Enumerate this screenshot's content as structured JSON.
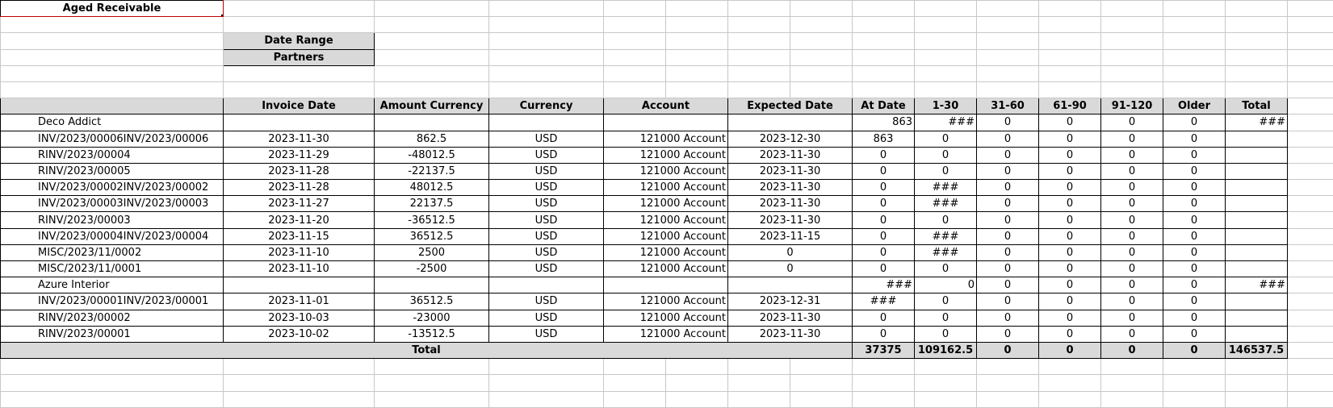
{
  "report": {
    "title": "Aged Receivable",
    "filters": {
      "date_range_label": "Date Range",
      "partners_label": "Partners"
    }
  },
  "columns": [
    "",
    "Invoice Date",
    "Amount Currency",
    "Currency",
    "Account",
    "Expected Date",
    "At Date",
    "1-30",
    "31-60",
    "61-90",
    "91-120",
    "Older",
    "Total"
  ],
  "groups": [
    {
      "partner": "Deco Addict",
      "subtotals": {
        "at_date": "863",
        "d1_30": "###",
        "d31_60": "0",
        "d61_90": "0",
        "d91_120": "0",
        "older": "0",
        "total": "###"
      },
      "rows": [
        {
          "ref": "INV/2023/00006INV/2023/00006",
          "invoice_date": "2023-11-30",
          "amount": "862.5",
          "currency": "USD",
          "account": "121000 Account",
          "expected": "2023-12-30",
          "at_date": "863",
          "d1_30": "0",
          "d31_60": "0",
          "d61_90": "0",
          "d91_120": "0",
          "older": "0"
        },
        {
          "ref": "RINV/2023/00004",
          "invoice_date": "2023-11-29",
          "amount": "-48012.5",
          "currency": "USD",
          "account": "121000 Account",
          "expected": "2023-11-30",
          "at_date": "0",
          "d1_30": "0",
          "d31_60": "0",
          "d61_90": "0",
          "d91_120": "0",
          "older": "0"
        },
        {
          "ref": "RINV/2023/00005",
          "invoice_date": "2023-11-28",
          "amount": "-22137.5",
          "currency": "USD",
          "account": "121000 Account",
          "expected": "2023-11-30",
          "at_date": "0",
          "d1_30": "0",
          "d31_60": "0",
          "d61_90": "0",
          "d91_120": "0",
          "older": "0"
        },
        {
          "ref": "INV/2023/00002INV/2023/00002",
          "invoice_date": "2023-11-28",
          "amount": "48012.5",
          "currency": "USD",
          "account": "121000 Account",
          "expected": "2023-11-30",
          "at_date": "0",
          "d1_30": "###",
          "d31_60": "0",
          "d61_90": "0",
          "d91_120": "0",
          "older": "0"
        },
        {
          "ref": "INV/2023/00003INV/2023/00003",
          "invoice_date": "2023-11-27",
          "amount": "22137.5",
          "currency": "USD",
          "account": "121000 Account",
          "expected": "2023-11-30",
          "at_date": "0",
          "d1_30": "###",
          "d31_60": "0",
          "d61_90": "0",
          "d91_120": "0",
          "older": "0"
        },
        {
          "ref": "RINV/2023/00003",
          "invoice_date": "2023-11-20",
          "amount": "-36512.5",
          "currency": "USD",
          "account": "121000 Account",
          "expected": "2023-11-30",
          "at_date": "0",
          "d1_30": "0",
          "d31_60": "0",
          "d61_90": "0",
          "d91_120": "0",
          "older": "0"
        },
        {
          "ref": "INV/2023/00004INV/2023/00004",
          "invoice_date": "2023-11-15",
          "amount": "36512.5",
          "currency": "USD",
          "account": "121000 Account",
          "expected": "2023-11-15",
          "at_date": "0",
          "d1_30": "###",
          "d31_60": "0",
          "d61_90": "0",
          "d91_120": "0",
          "older": "0"
        },
        {
          "ref": "MISC/2023/11/0002",
          "invoice_date": "2023-11-10",
          "amount": "2500",
          "currency": "USD",
          "account": "121000 Account",
          "expected": "0",
          "at_date": "0",
          "d1_30": "###",
          "d31_60": "0",
          "d61_90": "0",
          "d91_120": "0",
          "older": "0"
        },
        {
          "ref": "MISC/2023/11/0001",
          "invoice_date": "2023-11-10",
          "amount": "-2500",
          "currency": "USD",
          "account": "121000 Account",
          "expected": "0",
          "at_date": "0",
          "d1_30": "0",
          "d31_60": "0",
          "d61_90": "0",
          "d91_120": "0",
          "older": "0"
        }
      ]
    },
    {
      "partner": "Azure Interior",
      "subtotals": {
        "at_date": "###",
        "d1_30": "0",
        "d31_60": "0",
        "d61_90": "0",
        "d91_120": "0",
        "older": "0",
        "total": "###"
      },
      "rows": [
        {
          "ref": "INV/2023/00001INV/2023/00001",
          "invoice_date": "2023-11-01",
          "amount": "36512.5",
          "currency": "USD",
          "account": "121000 Account",
          "expected": "2023-12-31",
          "at_date": "###",
          "d1_30": "0",
          "d31_60": "0",
          "d61_90": "0",
          "d91_120": "0",
          "older": "0"
        },
        {
          "ref": "RINV/2023/00002",
          "invoice_date": "2023-10-03",
          "amount": "-23000",
          "currency": "USD",
          "account": "121000 Account",
          "expected": "2023-11-30",
          "at_date": "0",
          "d1_30": "0",
          "d31_60": "0",
          "d61_90": "0",
          "d91_120": "0",
          "older": "0"
        },
        {
          "ref": "RINV/2023/00001",
          "invoice_date": "2023-10-02",
          "amount": "-13512.5",
          "currency": "USD",
          "account": "121000 Account",
          "expected": "2023-11-30",
          "at_date": "0",
          "d1_30": "0",
          "d31_60": "0",
          "d61_90": "0",
          "d91_120": "0",
          "older": "0"
        }
      ]
    }
  ],
  "totals": {
    "label": "Total",
    "at_date": "37375",
    "d1_30": "109162.5",
    "d31_60": "0",
    "d61_90": "0",
    "d91_120": "0",
    "older": "0",
    "total": "146537.5"
  },
  "colors": {
    "header_fill": "#d9d9d9",
    "grid": "#c8c8c8",
    "selection": "#c00000"
  }
}
